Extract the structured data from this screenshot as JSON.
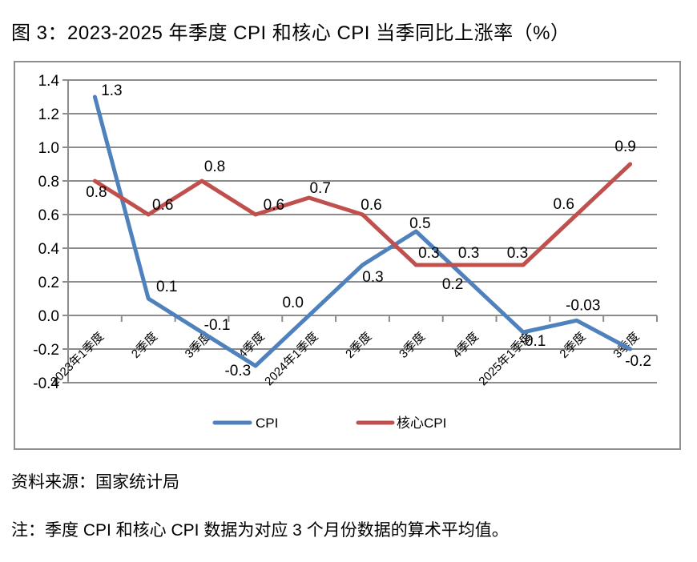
{
  "title": "图 3：2023-2025 年季度 CPI 和核心 CPI 当季同比上涨率（%）",
  "source": "资料来源：国家统计局",
  "note": "注：季度 CPI 和核心 CPI 数据为对应 3 个月份数据的算术平均值。",
  "colors": {
    "cpi_line": "#4F81BD",
    "core_cpi_line": "#C0504D",
    "gridline": "#8C8C8C",
    "axis": "#8C8C8C",
    "frame_border": "#8F8F8F",
    "label_text": "#000000"
  },
  "chart_data": {
    "type": "line",
    "categories": [
      "2023年1季度",
      "2季度",
      "3季度",
      "4季度",
      "2024年1季度",
      "2季度",
      "3季度",
      "4季度",
      "2025年1季度",
      "2季度",
      "3季度"
    ],
    "series": [
      {
        "name": "CPI",
        "color": "#4F81BD",
        "values": [
          1.3,
          0.1,
          -0.1,
          -0.3,
          0.0,
          0.3,
          0.5,
          0.2,
          -0.1,
          -0.03,
          -0.2
        ],
        "labels": [
          "1.3",
          "0.1",
          "-0.1",
          "-0.3",
          "0.0",
          "0.3",
          "0.5",
          "0.2",
          "-0.1",
          "-0.03",
          "-0.2"
        ]
      },
      {
        "name": "核心CPI",
        "color": "#C0504D",
        "values": [
          0.8,
          0.6,
          0.8,
          0.6,
          0.7,
          0.6,
          0.3,
          0.3,
          0.3,
          0.6,
          0.9
        ],
        "labels": [
          "0.8",
          "0.6",
          "0.8",
          "0.6",
          "0.7",
          "0.6",
          "0.3",
          "0.3",
          "0.3",
          "0.6",
          "0.9"
        ]
      }
    ],
    "title": "",
    "xlabel": "",
    "ylabel": "",
    "ylim": [
      -0.4,
      1.4
    ],
    "ytick_step": 0.2,
    "ytick_labels": [
      "1.4",
      "1.2",
      "1.0",
      "0.8",
      "0.6",
      "0.4",
      "0.2",
      "0.0",
      "-0.2",
      "-0.4"
    ],
    "grid": true,
    "legend_position": "bottom"
  }
}
